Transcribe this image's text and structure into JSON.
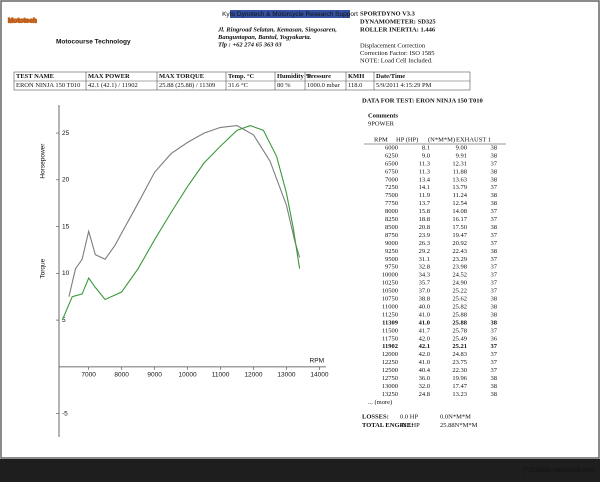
{
  "header": {
    "logo": "Mototech",
    "logo_subtitle": "Motocourse Technology",
    "sponsor": "Kyto Dynotech & Motorcycle Research Support",
    "address": [
      "Jl. Ringroad Selatan, Kemasan, Singosaren,",
      "Banguntapan, Bantul, Yogyakarta.",
      "Tlp : +62 274 65 363 03"
    ],
    "info_bold": [
      "SPORTDYNO V3.3",
      "DYNAMOMETER: SD325",
      "ROLLER INERTIA: 1.446"
    ],
    "info": [
      "Displacement Correction",
      "Correction Factor: ISO 1585",
      "NOTE: Load Cell Included."
    ]
  },
  "summary": {
    "headers": [
      "TEST NAME",
      "MAX POWER",
      "MAX TORQUE",
      "Temp. °C",
      "Humidity %",
      "Pressure",
      "KMH",
      "Date/Time"
    ],
    "values": [
      "ERON NINJA 150 T010",
      "42.1 (42.1) / 11902",
      "25.88 (25.88) / 11309",
      "31.6 °C",
      "80 %",
      "1000.0 mbar",
      "118.0",
      "5/9/2011 4:15:29 PM"
    ]
  },
  "chart_data": {
    "type": "line",
    "y_label": "Horsepower",
    "y2_label": "Torque",
    "x_label": "RPM",
    "xlim": [
      6100,
      14200
    ],
    "xticks": [
      7000,
      8000,
      9000,
      10000,
      11000,
      12000,
      13000,
      14000
    ],
    "ylim": [
      -7.5,
      28
    ],
    "yticks": [
      25,
      20,
      15,
      10,
      5,
      -5
    ],
    "series": [
      {
        "color": "#7d7d7d",
        "x": [
          6400,
          6600,
          6800,
          7000,
          7200,
          7500,
          7800,
          8000,
          8500,
          9000,
          9500,
          10000,
          10500,
          11000,
          11500,
          12000,
          12500,
          13000,
          13250,
          13400
        ],
        "values": [
          7.5,
          10.5,
          11.5,
          14.5,
          12,
          11.5,
          13,
          14.3,
          17.5,
          20.8,
          22.8,
          24,
          25,
          25.6,
          25.8,
          24.8,
          22,
          17.3,
          13.5,
          11.7
        ]
      },
      {
        "color": "#3a9a3a",
        "x": [
          6200,
          6500,
          6800,
          7000,
          7200,
          7500,
          8000,
          8500,
          9000,
          9500,
          10000,
          10500,
          11000,
          11500,
          11900,
          12300,
          12700,
          13000,
          13200,
          13400
        ],
        "values": [
          5,
          7.5,
          7.8,
          9.5,
          8.5,
          7.2,
          8,
          10.5,
          13.6,
          16.5,
          19.3,
          21.8,
          23.6,
          25.3,
          25.8,
          25.3,
          22.5,
          18.6,
          15,
          10.5
        ]
      }
    ]
  },
  "data_table": {
    "title": "DATA FOR TEST: ERON NINJA 150 T010",
    "comments_label": "Comments",
    "comments": "9POWER",
    "headers": [
      "RPM",
      "HP (HP)",
      "(N*M*M)",
      "EXHAUST 1"
    ],
    "rows": [
      [
        "6000",
        "8.1",
        "9.00",
        "38"
      ],
      [
        "6250",
        "9.0",
        "9.91",
        "38"
      ],
      [
        "6500",
        "11.3",
        "12.31",
        "37"
      ],
      [
        "6750",
        "11.3",
        "11.88",
        "38"
      ],
      [
        "7000",
        "13.4",
        "13.63",
        "38"
      ],
      [
        "7250",
        "14.1",
        "13.79",
        "37"
      ],
      [
        "7500",
        "11.9",
        "11.24",
        "38"
      ],
      [
        "7750",
        "13.7",
        "12.54",
        "38"
      ],
      [
        "8000",
        "15.8",
        "14.08",
        "37"
      ],
      [
        "8250",
        "18.8",
        "16.17",
        "37"
      ],
      [
        "8500",
        "20.8",
        "17.50",
        "38"
      ],
      [
        "8750",
        "23.9",
        "19.47",
        "37"
      ],
      [
        "9000",
        "26.3",
        "20.92",
        "37"
      ],
      [
        "9250",
        "29.2",
        "22.43",
        "38"
      ],
      [
        "9500",
        "31.1",
        "23.29",
        "37"
      ],
      [
        "9750",
        "32.8",
        "23.98",
        "37"
      ],
      [
        "10000",
        "34.3",
        "24.52",
        "37"
      ],
      [
        "10250",
        "35.7",
        "24.90",
        "37"
      ],
      [
        "10500",
        "37.0",
        "25.22",
        "37"
      ],
      [
        "10750",
        "38.8",
        "25.62",
        "38"
      ],
      [
        "11000",
        "40.0",
        "25.82",
        "38"
      ],
      [
        "11250",
        "41.0",
        "25.88",
        "38"
      ],
      [
        "11309",
        "41.0",
        "25.88",
        "38"
      ],
      [
        "11500",
        "41.7",
        "25.78",
        "37"
      ],
      [
        "11750",
        "42.0",
        "25.49",
        "36"
      ],
      [
        "11902",
        "42.1",
        "25.21",
        "37"
      ],
      [
        "12000",
        "42.0",
        "24.83",
        "37"
      ],
      [
        "12250",
        "41.0",
        "23.75",
        "37"
      ],
      [
        "12500",
        "40.4",
        "22.30",
        "37"
      ],
      [
        "12750",
        "36.0",
        "19.96",
        "38"
      ],
      [
        "13000",
        "32.0",
        "17.47",
        "38"
      ],
      [
        "13250",
        "24.8",
        "13.23",
        "38"
      ]
    ],
    "more": "... (more)",
    "highlight_rows": [
      22,
      25
    ],
    "highlight_color": "#d42020",
    "totals": [
      [
        "LOSSES:",
        "0.0 HP",
        "0.0N*M*M"
      ],
      [
        "TOTAL ENGINE:",
        "42.1HP",
        "25.88N*M*M"
      ]
    ]
  },
  "footer": "[720x556] http://upic.me/"
}
